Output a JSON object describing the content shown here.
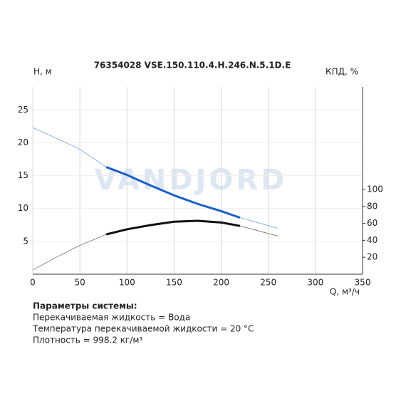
{
  "chart_data": {
    "type": "line",
    "title": "76354028 VSE.150.110.4.H.246.N.5.1D.E",
    "y_label": "H, м",
    "y2_label": "КПД, %",
    "x_label": "Q, м³/ч",
    "watermark": "VANDJORD",
    "x": [
      0,
      25,
      50,
      78,
      100,
      125,
      150,
      175,
      200,
      220,
      240,
      260
    ],
    "operating_range": [
      78,
      220
    ],
    "series": [
      {
        "color": "#1a5fc8",
        "values": [
          22.3,
          20.7,
          19.0,
          16.3,
          15.1,
          13.5,
          12.0,
          10.7,
          9.6,
          8.6,
          7.8,
          7.0
        ]
      },
      {
        "color": "#111111",
        "axis": "y2",
        "values": [
          5,
          20,
          34,
          47,
          53,
          58,
          62,
          63,
          61,
          57,
          51,
          45
        ]
      }
    ],
    "xlim": [
      0,
      350
    ],
    "xticks": [
      0,
      50,
      100,
      150,
      200,
      250,
      300,
      350
    ],
    "ylim": [
      0,
      28.5
    ],
    "yticks": [
      5,
      10,
      15,
      20,
      25
    ],
    "y2lim": [
      0,
      221
    ],
    "y2ticks": [
      20,
      40,
      60,
      80,
      100
    ],
    "grid": true
  },
  "parameters": {
    "heading": "Параметры системы:",
    "lines": [
      "Перекачиваемая жидкость = Вода",
      "Температура перекачиваемой жидкости = 20 °C",
      "Плотность = 998.2 кг/м³"
    ]
  }
}
